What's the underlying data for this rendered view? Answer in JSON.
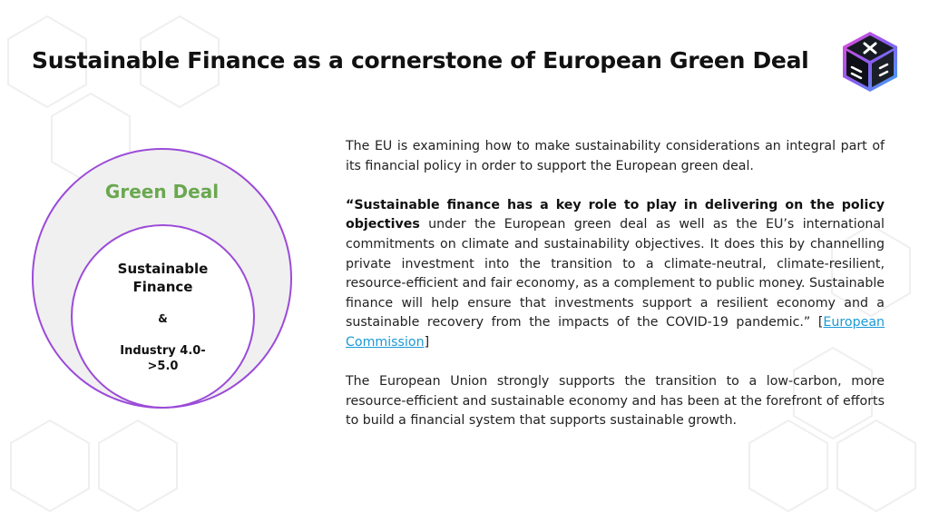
{
  "title": "Sustainable Finance as a cornerstone of European Green Deal",
  "logo": {
    "icon": "cube-logo-icon"
  },
  "diagram": {
    "outer_label": "Green Deal",
    "inner_line1": "Sustainable",
    "inner_line2": "Finance",
    "ampersand": "&",
    "industry_line1": "Industry 4.0-",
    "industry_line2": ">5.0"
  },
  "body": {
    "para1": "The EU is examining how to make sustainability considerations an integral part of its financial policy in order to support the European green deal.",
    "para2_bold": "“Sustainable finance has a key role to play in delivering on the policy objectives",
    "para2_rest": " under the European green deal as well as the EU’s international commitments on climate and sustainability objectives. It does this by channelling private investment into the transition to a climate-neutral, climate-resilient, resource-efficient and fair economy, as a complement to public money. Sustainable finance will help ensure that investments support a resilient economy and a sustainable recovery from the impacts of the COVID-19 pandemic.” [",
    "link_text": "European Commission",
    "para2_end": "]",
    "para3": "The European Union strongly supports the transition to a low-carbon, more resource-efficient and sustainable economy and has been at the forefront of efforts to build a financial system that supports sustainable growth."
  },
  "colors": {
    "purple": "#9b4bd8",
    "green": "#6aa84f",
    "link": "#1a9ad6",
    "circle_fill": "#f0f0f0"
  }
}
